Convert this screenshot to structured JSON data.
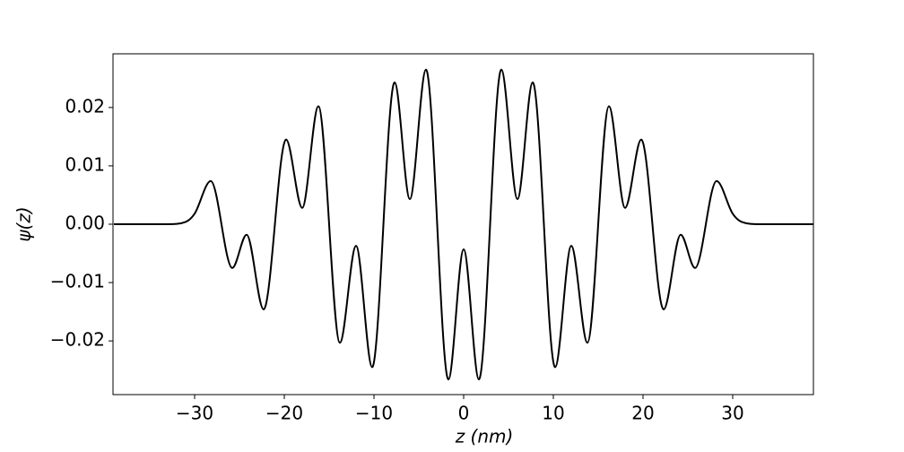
{
  "chart_data": {
    "type": "line",
    "xlabel": "z (nm)",
    "ylabel": "ψ(z)",
    "x": [
      -39,
      -33,
      -31,
      -30,
      -28.2,
      -25.8,
      -24.2,
      -22.3,
      -19.8,
      -18.0,
      -16.2,
      -13.8,
      -12.0,
      -10.2,
      -7.7,
      -6.0,
      -4.2,
      -1.7,
      0,
      1.7,
      4.2,
      6.0,
      7.7,
      10.2,
      12.0,
      13.8,
      16.2,
      18.0,
      19.8,
      22.3,
      24.2,
      25.8,
      28.2,
      30,
      31,
      33,
      39
    ],
    "values": [
      0,
      0,
      0.0004,
      0.0018,
      0.0074,
      -0.0075,
      -0.0018,
      -0.0146,
      0.0145,
      0.0028,
      0.0202,
      -0.0203,
      -0.0037,
      -0.0245,
      0.0243,
      0.0043,
      0.0265,
      -0.0266,
      -0.0043,
      -0.0266,
      0.0265,
      0.0043,
      0.0243,
      -0.0245,
      -0.0037,
      -0.0203,
      0.0202,
      0.0028,
      0.0145,
      -0.0146,
      -0.0018,
      -0.0075,
      0.0074,
      0.0018,
      0.0004,
      0,
      0
    ],
    "color": "#000000",
    "xlim": [
      -39.1,
      39.0
    ],
    "ylim": [
      -0.0292,
      0.0292
    ],
    "xticks": [
      {
        "value": -30,
        "label": "−30"
      },
      {
        "value": -20,
        "label": "−20"
      },
      {
        "value": -10,
        "label": "−10"
      },
      0,
      10,
      20,
      30
    ],
    "yticks": [
      {
        "value": -0.02,
        "label": "−0.02"
      },
      {
        "value": -0.01,
        "label": "−0.01"
      },
      {
        "value": 0,
        "label": "0.00"
      },
      0.01,
      0.02
    ]
  }
}
